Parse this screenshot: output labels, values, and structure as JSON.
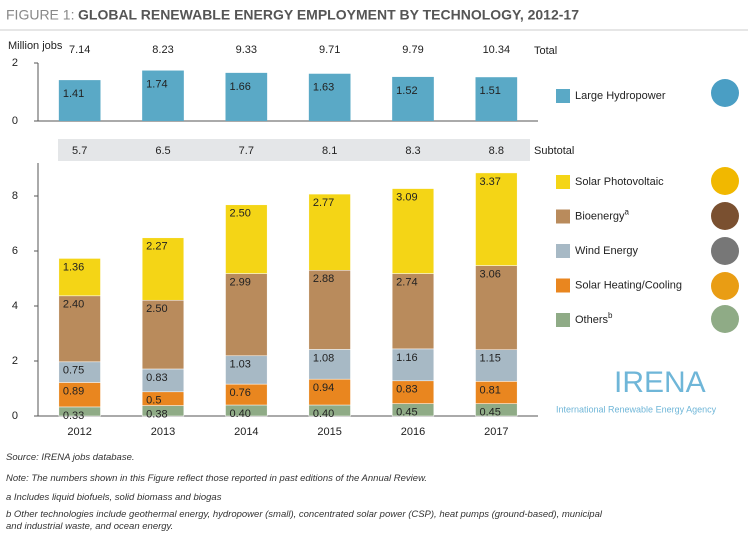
{
  "figure_label": "FIGURE 1:",
  "title": "GLOBAL RENEWABLE ENERGY EMPLOYMENT BY TECHNOLOGY, 2012-17",
  "chart_data": [
    {
      "type": "bar",
      "y_label": "Million jobs",
      "ylim": [
        0,
        2
      ],
      "yticks": [
        0,
        2
      ],
      "series": [
        {
          "name": "Large Hydropower",
          "color": "#5aa9c6",
          "values": [
            1.41,
            1.74,
            1.66,
            1.63,
            1.52,
            1.51
          ]
        }
      ],
      "totals": [
        7.14,
        8.23,
        9.33,
        9.71,
        9.79,
        10.34
      ],
      "totals_label": "Total"
    },
    {
      "type": "stacked_bar",
      "categories": [
        "2012",
        "2013",
        "2014",
        "2015",
        "2016",
        "2017"
      ],
      "ylim": [
        0,
        9.2
      ],
      "yticks": [
        0,
        2,
        4,
        6,
        8
      ],
      "series": [
        {
          "name": "Others",
          "marker": "b",
          "color": "#8fab86",
          "values": [
            0.33,
            0.38,
            0.4,
            0.4,
            0.45,
            0.45
          ],
          "value_labels": [
            "0.33",
            "0.38",
            "0.40",
            "0.40",
            "0.45",
            "0.45"
          ]
        },
        {
          "name": "Solar Heating/Cooling",
          "color": "#e9861f",
          "values": [
            0.89,
            0.5,
            0.76,
            0.94,
            0.83,
            0.81
          ]
        },
        {
          "name": "Wind Energy",
          "color": "#a7b9c5",
          "values": [
            0.75,
            0.83,
            1.03,
            1.08,
            1.16,
            1.15
          ]
        },
        {
          "name": "Bioenergy",
          "marker": "a",
          "color": "#b98b5c",
          "values": [
            2.4,
            2.5,
            2.99,
            2.88,
            2.74,
            3.06
          ],
          "value_labels": [
            "2.40",
            "2.50",
            "2.99",
            "2.88",
            "2.74",
            "3.06"
          ]
        },
        {
          "name": "Solar Photovoltaic",
          "color": "#f4d516",
          "values": [
            1.36,
            2.27,
            2.5,
            2.77,
            3.09,
            3.37
          ],
          "value_labels": [
            "1.36",
            "2.27",
            "2.50",
            "2.77",
            "3.09",
            "3.37"
          ]
        }
      ],
      "subtotals": [
        5.7,
        6.5,
        7.7,
        8.1,
        8.3,
        8.8
      ],
      "subtotals_label": "Subtotal"
    }
  ],
  "logo": {
    "name": "IRENA",
    "subtitle": "International Renewable Energy Agency"
  },
  "source": "Source: IRENA jobs database.",
  "note": "Note: The numbers shown in this Figure reflect those reported in past editions of the Annual Review.",
  "footnotes": [
    "a  Includes liquid biofuels, solid biomass and biogas",
    "b  Other technologies include geothermal energy, hydropower (small), concentrated solar power (CSP), heat pumps (ground-based), municipal and industrial waste, and ocean energy."
  ]
}
